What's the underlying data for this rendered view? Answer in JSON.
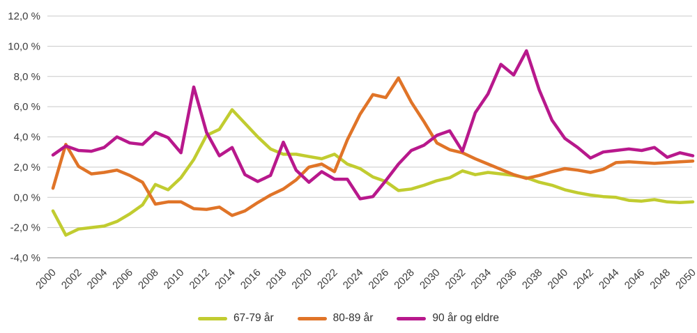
{
  "chart_data": {
    "type": "line",
    "title": "",
    "xlabel": "",
    "ylabel": "",
    "grid": true,
    "legend_position": "bottom",
    "ylim": [
      -4,
      12
    ],
    "y_ticks": [
      {
        "value": 12,
        "label": "12,0 %"
      },
      {
        "value": 10,
        "label": "10,0 %"
      },
      {
        "value": 8,
        "label": "8,0 %"
      },
      {
        "value": 6,
        "label": "6,0 %"
      },
      {
        "value": 4,
        "label": "4,0 %"
      },
      {
        "value": 2,
        "label": "2,0 %"
      },
      {
        "value": 0,
        "label": "0,0 %"
      },
      {
        "value": -2,
        "label": "-2,0 %"
      },
      {
        "value": -4,
        "label": "-4,0 %"
      }
    ],
    "x_start": 2000,
    "x_end": 2050,
    "x_tick_labels": [
      "2000",
      "2002",
      "2004",
      "2006",
      "2008",
      "2010",
      "2012",
      "2014",
      "2016",
      "2018",
      "2020",
      "2022",
      "2024",
      "2026",
      "2028",
      "2030",
      "2032",
      "2034",
      "2036",
      "2038",
      "2040",
      "2042",
      "2044",
      "2046",
      "2048",
      "2050"
    ],
    "series": [
      {
        "name": "67-79 år",
        "color": "#c1cc30",
        "values": [
          -0.9,
          -2.5,
          -2.1,
          -2.0,
          -1.9,
          -1.6,
          -1.1,
          -0.5,
          0.85,
          0.5,
          1.3,
          2.5,
          4.1,
          4.5,
          5.8,
          4.9,
          4.0,
          3.2,
          2.85,
          2.85,
          2.7,
          2.55,
          2.85,
          2.2,
          1.9,
          1.35,
          1.05,
          0.45,
          0.55,
          0.8,
          1.1,
          1.3,
          1.75,
          1.5,
          1.65,
          1.55,
          1.45,
          1.3,
          1.0,
          0.8,
          0.5,
          0.3,
          0.15,
          0.05,
          0.0,
          -0.2,
          -0.25,
          -0.15,
          -0.3,
          -0.35,
          -0.3
        ]
      },
      {
        "name": "80-89 år",
        "color": "#e07428",
        "values": [
          0.6,
          3.5,
          2.05,
          1.55,
          1.65,
          1.8,
          1.45,
          1.0,
          -0.45,
          -0.3,
          -0.3,
          -0.75,
          -0.8,
          -0.65,
          -1.2,
          -0.9,
          -0.35,
          0.15,
          0.55,
          1.15,
          2.0,
          2.2,
          1.7,
          3.8,
          5.5,
          6.8,
          6.6,
          7.9,
          6.3,
          5.0,
          3.6,
          3.15,
          2.95,
          2.55,
          2.2,
          1.85,
          1.5,
          1.25,
          1.45,
          1.7,
          1.9,
          1.8,
          1.65,
          1.85,
          2.3,
          2.35,
          2.3,
          2.25,
          2.3,
          2.35,
          2.4
        ]
      },
      {
        "name": "90 år og eldre",
        "color": "#b8188c",
        "values": [
          2.8,
          3.4,
          3.1,
          3.05,
          3.3,
          4.0,
          3.6,
          3.5,
          4.3,
          3.95,
          2.95,
          7.3,
          4.3,
          2.75,
          3.3,
          1.5,
          1.05,
          1.45,
          3.65,
          1.8,
          1.0,
          1.7,
          1.2,
          1.2,
          -0.1,
          0.05,
          1.1,
          2.2,
          3.1,
          3.45,
          4.1,
          4.4,
          3.05,
          5.6,
          6.85,
          8.8,
          8.1,
          9.7,
          7.1,
          5.1,
          3.9,
          3.3,
          2.6,
          3.0,
          3.1,
          3.2,
          3.1,
          3.3,
          2.65,
          2.95,
          2.75
        ]
      }
    ],
    "style": {
      "gridline_color": "#c9c9c9",
      "baseline_color": "#ababab",
      "line_width": 4.5
    }
  }
}
